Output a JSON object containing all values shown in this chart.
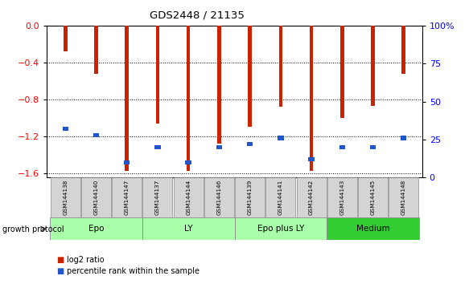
{
  "title": "GDS2448 / 21135",
  "samples": [
    "GSM144138",
    "GSM144140",
    "GSM144147",
    "GSM144137",
    "GSM144144",
    "GSM144146",
    "GSM144139",
    "GSM144141",
    "GSM144142",
    "GSM144143",
    "GSM144145",
    "GSM144148"
  ],
  "log2_ratio": [
    -0.28,
    -0.52,
    -1.58,
    -1.06,
    -1.58,
    -1.28,
    -1.1,
    -0.88,
    -1.58,
    -1.0,
    -0.87,
    -0.52
  ],
  "percentile_rank": [
    32,
    28,
    10,
    20,
    10,
    20,
    22,
    26,
    12,
    20,
    20,
    26
  ],
  "groups": [
    {
      "label": "Epo",
      "start": 0,
      "end": 3,
      "color": "#aaffaa"
    },
    {
      "label": "LY",
      "start": 3,
      "end": 6,
      "color": "#aaffaa"
    },
    {
      "label": "Epo plus LY",
      "start": 6,
      "end": 9,
      "color": "#aaffaa"
    },
    {
      "label": "Medium",
      "start": 9,
      "end": 12,
      "color": "#33cc33"
    }
  ],
  "bar_color": "#cc2200",
  "dot_color": "#2255cc",
  "ylim_left": [
    -1.65,
    0.0
  ],
  "ylim_right": [
    0,
    100
  ],
  "yticks_left": [
    0,
    -0.4,
    -0.8,
    -1.2,
    -1.6
  ],
  "yticks_right": [
    0,
    25,
    50,
    75,
    100
  ],
  "growth_protocol_label": "growth protocol",
  "legend_log2": "log2 ratio",
  "legend_pct": "percentile rank within the sample",
  "bar_width": 0.12
}
